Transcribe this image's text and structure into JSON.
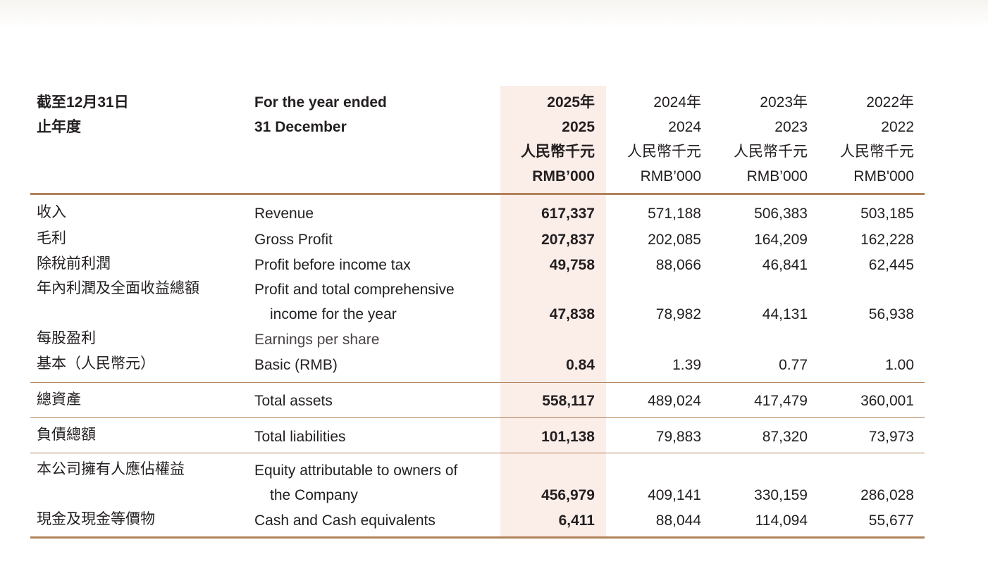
{
  "header": {
    "zh_line1": "截至12月31日",
    "zh_line2": "止年度",
    "en_line1": "For the year ended",
    "en_line2": "31 December",
    "columns": [
      {
        "year_zh": "2025年",
        "year": "2025",
        "unit_zh": "人民幣千元",
        "unit_en": "RMB’000"
      },
      {
        "year_zh": "2024年",
        "year": "2024",
        "unit_zh": "人民幣千元",
        "unit_en": "RMB’000"
      },
      {
        "year_zh": "2023年",
        "year": "2023",
        "unit_zh": "人民幣千元",
        "unit_en": "RMB’000"
      },
      {
        "year_zh": "2022年",
        "year": "2022",
        "unit_zh": "人民幣千元",
        "unit_en": "RMB'000"
      }
    ]
  },
  "rows": {
    "revenue": {
      "zh": "收入",
      "en": "Revenue",
      "v2025": "617,337",
      "v2024": "571,188",
      "v2023": "506,383",
      "v2022": "503,185"
    },
    "gross_profit": {
      "zh": "毛利",
      "en": "Gross Profit",
      "v2025": "207,837",
      "v2024": "202,085",
      "v2023": "164,209",
      "v2022": "162,228"
    },
    "pbt": {
      "zh": "除稅前利潤",
      "en": "Profit before income tax",
      "v2025": "49,758",
      "v2024": "88,066",
      "v2023": "46,841",
      "v2022": "62,445"
    },
    "total_comp": {
      "zh": "年內利潤及全面收益總額",
      "en1": "Profit and total comprehensive",
      "en2": "income for the year",
      "v2025": "47,838",
      "v2024": "78,982",
      "v2023": "44,131",
      "v2022": "56,938"
    },
    "eps": {
      "zh1": "每股盈利",
      "zh2": "基本（人民幣元）",
      "en1": "Earnings per share",
      "en2": "Basic (RMB)",
      "v2025": "0.84",
      "v2024": "1.39",
      "v2023": "0.77",
      "v2022": "1.00"
    },
    "total_assets": {
      "zh": "總資產",
      "en": "Total assets",
      "v2025": "558,117",
      "v2024": "489,024",
      "v2023": "417,479",
      "v2022": "360,001"
    },
    "total_liabilities": {
      "zh": "負債總額",
      "en": "Total liabilities",
      "v2025": "101,138",
      "v2024": "79,883",
      "v2023": "87,320",
      "v2022": "73,973"
    },
    "equity": {
      "zh": "本公司擁有人應佔權益",
      "en1": "Equity attributable to owners of",
      "en2": "the Company",
      "v2025": "456,979",
      "v2024": "409,141",
      "v2023": "330,159",
      "v2022": "286,028"
    },
    "cash": {
      "zh": "現金及現金等價物",
      "en": "Cash and Cash equivalents",
      "v2025": "6,411",
      "v2024": "88,044",
      "v2023": "114,094",
      "v2022": "55,677"
    }
  }
}
